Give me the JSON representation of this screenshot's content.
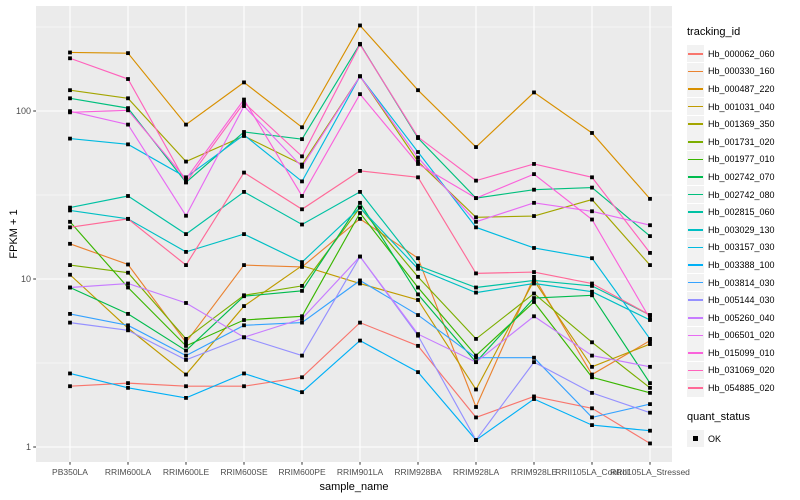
{
  "chart_data": {
    "type": "line",
    "title": "",
    "xlabel": "sample_name",
    "ylabel": "FPKM + 1",
    "y_scale": "log10",
    "ylim": [
      1,
      400
    ],
    "y_major_ticks": [
      1,
      10,
      100
    ],
    "y_minor_ticks": [
      3.162,
      31.62,
      316.2
    ],
    "grid": true,
    "legend_position": "right",
    "point_shape": "filled-square",
    "point_color": "#000000",
    "categories": [
      "PB350LA",
      "RRIM600LA",
      "RRIM600LE",
      "RRIM600SE",
      "RRIM600PE",
      "RRIM901LA",
      "RRIM928BA",
      "RRIM928LA",
      "RRIM928LE",
      "RRII105LA_Control",
      "RRII105LA_Stressed"
    ],
    "series": [
      {
        "name": "Hb_000062_060",
        "color": "#F8766D",
        "values": [
          2.3,
          2.4,
          2.3,
          2.3,
          2.6,
          5.5,
          4.0,
          1.5,
          2.0,
          1.7,
          1.05
        ]
      },
      {
        "name": "Hb_000330_160",
        "color": "#EA8331",
        "values": [
          16.2,
          12.2,
          4.2,
          12.1,
          11.8,
          22.8,
          13.3,
          1.73,
          10.3,
          2.7,
          4.3
        ]
      },
      {
        "name": "Hb_000487_220",
        "color": "#D89000",
        "values": [
          223,
          221,
          83,
          148,
          80,
          323,
          133,
          61,
          129,
          74,
          30
        ]
      },
      {
        "name": "Hb_001031_040",
        "color": "#C09B00",
        "values": [
          10.6,
          5.1,
          2.7,
          6.9,
          12.0,
          9.4,
          7.5,
          2.2,
          9.8,
          3.0,
          4.1
        ]
      },
      {
        "name": "Hb_001369_350",
        "color": "#A3A500",
        "values": [
          133,
          119,
          50,
          71,
          48,
          161,
          50,
          23.3,
          23.7,
          29.7,
          12.1
        ]
      },
      {
        "name": "Hb_001731_020",
        "color": "#7CAE00",
        "values": [
          12.1,
          10.9,
          4.4,
          8.0,
          9.1,
          26.6,
          10.3,
          4.4,
          8.2,
          4.2,
          2.25
        ]
      },
      {
        "name": "Hb_001977_010",
        "color": "#39B600",
        "values": [
          21.9,
          8.9,
          4.0,
          5.7,
          6.0,
          24.7,
          8.9,
          3.5,
          7.3,
          2.6,
          2.1
        ]
      },
      {
        "name": "Hb_002742_070",
        "color": "#00BB4E",
        "values": [
          8.9,
          6.2,
          3.75,
          7.9,
          8.5,
          28.4,
          8.1,
          3.2,
          7.7,
          8.0,
          2.4
        ]
      },
      {
        "name": "Hb_002742_080",
        "color": "#00BF7D",
        "values": [
          119,
          104,
          37.6,
          75,
          68,
          251,
          69,
          30.3,
          34,
          35,
          18
        ]
      },
      {
        "name": "Hb_002815_060",
        "color": "#00C1A3",
        "values": [
          26.6,
          31.2,
          18.5,
          33,
          21.1,
          33,
          12.0,
          8.9,
          9.8,
          9.1,
          6.1
        ]
      },
      {
        "name": "Hb_003029_130",
        "color": "#00BFC4",
        "values": [
          25.6,
          22.8,
          14.5,
          18.5,
          12.6,
          26.6,
          11.5,
          8.3,
          9.4,
          8.4,
          5.7
        ]
      },
      {
        "name": "Hb_003157_030",
        "color": "#00BAE0",
        "values": [
          68.5,
          63.3,
          40.3,
          72,
          38.1,
          161,
          57,
          20.3,
          15.3,
          13.3,
          4.4
        ]
      },
      {
        "name": "Hb_003388_100",
        "color": "#00B0F6",
        "values": [
          2.74,
          2.25,
          1.96,
          2.74,
          2.12,
          4.3,
          2.79,
          1.1,
          1.93,
          1.35,
          1.25
        ]
      },
      {
        "name": "Hb_003814_030",
        "color": "#35A2FF",
        "values": [
          6.2,
          5.3,
          3.5,
          5.3,
          5.5,
          9.8,
          6.1,
          3.4,
          3.4,
          1.5,
          1.8
        ]
      },
      {
        "name": "Hb_005144_030",
        "color": "#9590FF",
        "values": [
          5.5,
          4.95,
          3.3,
          4.5,
          3.5,
          13.6,
          4.6,
          1.1,
          3.2,
          2.1,
          1.6
        ]
      },
      {
        "name": "Hb_005260_040",
        "color": "#C77CFF",
        "values": [
          8.9,
          9.4,
          7.2,
          4.5,
          5.8,
          13.6,
          4.7,
          3.2,
          6.0,
          3.5,
          3.0
        ]
      },
      {
        "name": "Hb_006501_020",
        "color": "#E76BF3",
        "values": [
          99.8,
          83,
          23.8,
          107,
          46.6,
          161,
          52.8,
          21.9,
          28.4,
          25.3,
          20.9
        ]
      },
      {
        "name": "Hb_015099_010",
        "color": "#FA62DB",
        "values": [
          98.2,
          101,
          39.4,
          117,
          31.2,
          126,
          48.4,
          30.3,
          42.1,
          22.6,
          5.8
        ]
      },
      {
        "name": "Hb_031069_020",
        "color": "#FF62BC",
        "values": [
          206,
          155,
          37.6,
          112,
          53.7,
          249,
          70,
          38.5,
          48.4,
          40.3,
          14.3
        ]
      },
      {
        "name": "Hb_054885_020",
        "color": "#FF6A98",
        "values": [
          20.3,
          22.8,
          12.1,
          43,
          26,
          44,
          40.3,
          10.8,
          11.0,
          9.4,
          6.1
        ]
      }
    ]
  },
  "legend": {
    "color_legend_title": "tracking_id",
    "shape_legend_title": "quant_status",
    "shape_items": [
      {
        "label": "OK",
        "marker": "filled-square",
        "color": "#000000"
      }
    ]
  },
  "colors": {
    "panel_bg": "#EBEBEB",
    "grid": "#FFFFFF",
    "axis_text": "#4D4D4D",
    "tick_mark": "#333333",
    "legend_key_bg": "#F2F2F2"
  }
}
